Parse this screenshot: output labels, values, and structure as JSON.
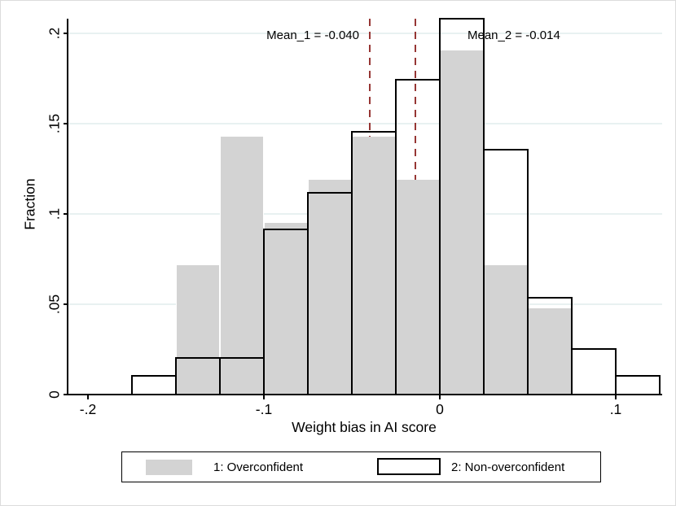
{
  "chart_data": {
    "type": "bar",
    "subtype": "overlaid-histogram",
    "title": "",
    "xlabel": "Weight bias in AI score",
    "ylabel": "Fraction",
    "bin_start": -0.175,
    "bin_width": 0.025,
    "bin_edges": [
      -0.175,
      -0.15,
      -0.125,
      -0.1,
      -0.075,
      -0.05,
      -0.025,
      0,
      0.025,
      0.05,
      0.075,
      0.1,
      0.125
    ],
    "series": [
      {
        "name": "1: Overconfident",
        "style": "gray-filled",
        "fractions": [
          0,
          0.0714,
          0.1429,
          0.0952,
          0.119,
          0.1429,
          0.119,
          0.1905,
          0.0714,
          0.0476,
          0,
          0
        ]
      },
      {
        "name": "2: Non-overconfident",
        "style": "white-outlined",
        "fractions": [
          0.0104,
          0.0203,
          0.0203,
          0.0915,
          0.1117,
          0.1455,
          0.1743,
          0.2079,
          0.1356,
          0.0536,
          0.0252,
          0.0104
        ]
      }
    ],
    "mean_lines": [
      {
        "label": "Mean_1 = -0.040",
        "x": -0.04,
        "label_side": "left"
      },
      {
        "label": "Mean_2 = -0.014",
        "x": -0.014,
        "label_side": "right"
      }
    ],
    "x_ticks": [
      {
        "v": -0.2,
        "label": "-.2"
      },
      {
        "v": -0.1,
        "label": "-.1"
      },
      {
        "v": 0,
        "label": "0"
      },
      {
        "v": 0.1,
        "label": ".1"
      }
    ],
    "y_ticks": [
      {
        "v": 0,
        "label": "0"
      },
      {
        "v": 0.05,
        "label": ".05"
      },
      {
        "v": 0.1,
        "label": ".1"
      },
      {
        "v": 0.15,
        "label": ".15"
      },
      {
        "v": 0.2,
        "label": ".2"
      }
    ],
    "xlim": [
      -0.211,
      0.126
    ],
    "ylim": [
      0,
      0.208
    ],
    "grid": true,
    "legend_position": "bottom",
    "legend": {
      "items": [
        {
          "label": "1: Overconfident",
          "swatch": "gray"
        },
        {
          "label": "2: Non-overconfident",
          "swatch": "white-outlined"
        }
      ]
    },
    "colors": {
      "bar_fill_gray": "#d3d3d3",
      "bar_outline": "#000000",
      "mean_line": "#963634",
      "gridline": "#e8f1f1",
      "axis": "#000000",
      "background": "#ffffff"
    }
  }
}
